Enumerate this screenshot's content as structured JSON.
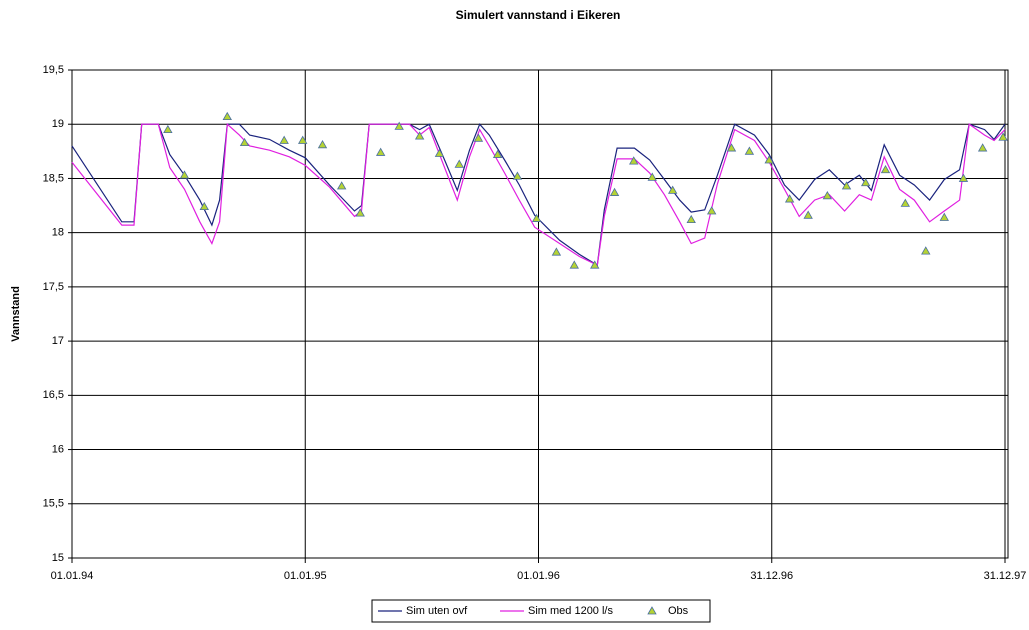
{
  "chart_data": {
    "type": "line",
    "title": "Simulert vannstand i Eikeren",
    "y_label": "Vannstand",
    "x": [
      "1994-01-01",
      "1994-03-20",
      "1994-04-08",
      "1994-04-20",
      "1994-05-16",
      "1994-06-03",
      "1994-06-26",
      "1994-07-20",
      "1994-08-08",
      "1994-08-20",
      "1994-09-01",
      "1994-09-20",
      "1994-10-06",
      "1994-11-06",
      "1994-12-07",
      "1995-01-01",
      "1995-02-08",
      "1995-03-19",
      "1995-03-30",
      "1995-04-11",
      "1995-06-13",
      "1995-06-29",
      "1995-07-14",
      "1995-08-07",
      "1995-08-27",
      "1995-09-15",
      "1995-10-01",
      "1995-10-16",
      "1995-11-09",
      "1995-12-02",
      "1995-12-26",
      "1996-02-03",
      "1996-03-05",
      "1996-04-02",
      "1996-04-13",
      "1996-05-03",
      "1996-05-30",
      "1996-06-23",
      "1996-07-16",
      "1996-08-09",
      "1996-08-27",
      "1996-09-17",
      "1996-10-07",
      "1996-11-03",
      "1996-12-04",
      "1996-12-27",
      "1997-01-20",
      "1997-02-12",
      "1997-03-08",
      "1997-03-31",
      "1997-04-24",
      "1997-05-17",
      "1997-06-05",
      "1997-06-25",
      "1997-07-19",
      "1997-08-11",
      "1997-09-04",
      "1997-09-27",
      "1997-10-21",
      "1997-11-05",
      "1997-11-29",
      "1997-12-14",
      "1997-12-31"
    ],
    "series": [
      {
        "name": "Sim uten ovf",
        "color": "#1a237e",
        "values": [
          18.8,
          18.1,
          18.1,
          19.0,
          19.0,
          18.72,
          18.53,
          18.3,
          18.07,
          18.3,
          19.0,
          19.0,
          18.9,
          18.86,
          18.76,
          18.69,
          18.44,
          18.2,
          18.25,
          19.0,
          19.0,
          18.95,
          19.0,
          18.67,
          18.39,
          18.76,
          19.0,
          18.9,
          18.67,
          18.44,
          18.16,
          17.93,
          17.8,
          17.7,
          18.21,
          18.78,
          18.78,
          18.67,
          18.49,
          18.3,
          18.19,
          18.21,
          18.53,
          19.0,
          18.9,
          18.72,
          18.44,
          18.3,
          18.49,
          18.58,
          18.44,
          18.53,
          18.39,
          18.81,
          18.53,
          18.44,
          18.3,
          18.49,
          18.58,
          19.0,
          18.95,
          18.86,
          19.0
        ]
      },
      {
        "name": "Sim med 1200 l/s",
        "color": "#e020e0",
        "values": [
          18.65,
          18.07,
          18.07,
          19.0,
          19.0,
          18.6,
          18.4,
          18.1,
          17.9,
          18.1,
          19.0,
          18.9,
          18.8,
          18.76,
          18.7,
          18.62,
          18.42,
          18.15,
          18.2,
          19.0,
          19.0,
          18.9,
          18.97,
          18.6,
          18.3,
          18.7,
          18.95,
          18.8,
          18.55,
          18.3,
          18.05,
          17.9,
          17.78,
          17.7,
          18.15,
          18.68,
          18.68,
          18.55,
          18.35,
          18.1,
          17.9,
          17.95,
          18.45,
          18.95,
          18.85,
          18.65,
          18.4,
          18.15,
          18.3,
          18.35,
          18.2,
          18.35,
          18.3,
          18.7,
          18.4,
          18.3,
          18.1,
          18.2,
          18.3,
          19.0,
          18.9,
          18.85,
          18.95
        ]
      }
    ],
    "obs": {
      "name": "Obs",
      "color": "#b5d334",
      "x": [
        "1994-05-31",
        "1994-06-26",
        "1994-07-27",
        "1994-09-01",
        "1994-09-28",
        "1994-11-29",
        "1994-12-28",
        "1995-01-28",
        "1995-02-27",
        "1995-03-28",
        "1995-04-29",
        "1995-05-28",
        "1995-06-29",
        "1995-07-30",
        "1995-08-30",
        "1995-09-29",
        "1995-10-29",
        "1995-11-29",
        "1995-12-29",
        "1996-01-29",
        "1996-02-26",
        "1996-03-29",
        "1996-04-29",
        "1996-05-29",
        "1996-06-27",
        "1996-07-29",
        "1996-08-27",
        "1996-09-28",
        "1996-10-29",
        "1996-11-26",
        "1996-12-27",
        "1997-01-28",
        "1997-02-26",
        "1997-03-28",
        "1997-04-27",
        "1997-05-27",
        "1997-06-27",
        "1997-07-28",
        "1997-08-29",
        "1997-09-27",
        "1997-10-27",
        "1997-11-26",
        "1997-12-28"
      ],
      "values": [
        18.95,
        18.53,
        18.24,
        19.07,
        18.83,
        18.85,
        18.85,
        18.81,
        18.43,
        18.18,
        18.74,
        18.98,
        18.89,
        18.73,
        18.63,
        18.87,
        18.72,
        18.52,
        18.13,
        17.82,
        17.7,
        17.7,
        18.37,
        18.66,
        18.51,
        18.39,
        18.12,
        18.2,
        18.78,
        18.75,
        18.67,
        18.31,
        18.16,
        18.34,
        18.43,
        18.46,
        18.58,
        18.27,
        17.83,
        18.14,
        18.5,
        18.78,
        18.88
      ]
    },
    "xlim": [
      "1994-01-01",
      "1997-12-31"
    ],
    "xticks": [
      {
        "value": "1994-01-01",
        "label": "01.01.94"
      },
      {
        "value": "1995-01-01",
        "label": "01.01.95"
      },
      {
        "value": "1996-01-01",
        "label": "01.01.96"
      },
      {
        "value": "1996-12-31",
        "label": "31.12.96"
      },
      {
        "value": "1997-12-31",
        "label": "31.12.97"
      }
    ],
    "ylim": [
      15,
      19.5
    ],
    "yticks": [
      15,
      {
        "value": 15.5,
        "label": "15,5"
      },
      16,
      {
        "value": 16.5,
        "label": "16,5"
      },
      17,
      {
        "value": 17.5,
        "label": "17,5"
      },
      18,
      {
        "value": 18.5,
        "label": "18,5"
      },
      19,
      {
        "value": 19.5,
        "label": "19,5"
      }
    ],
    "grid": true,
    "legend": "bottom"
  }
}
